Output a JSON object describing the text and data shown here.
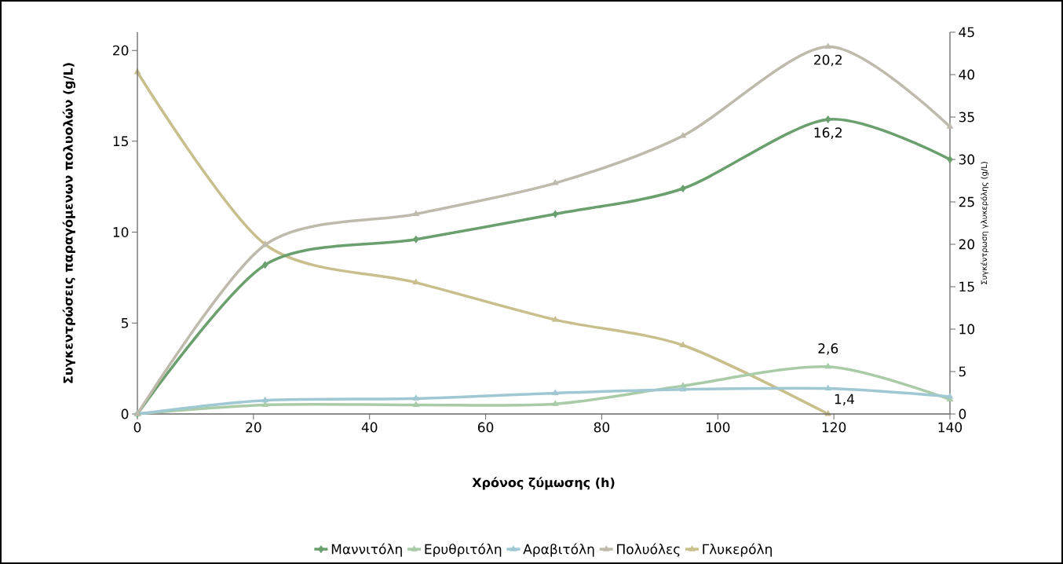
{
  "chart_data": {
    "type": "line",
    "xlabel": "Χρόνος ζύμωσης (h)",
    "ylabel": "Συγκεντρώσεις παραγόμενων  πολυολών (g/L)",
    "y2label": "Συγκέντρωση γλυκερόλης (g/L)",
    "x": [
      0,
      22,
      48,
      72,
      94,
      119,
      140
    ],
    "xlim": [
      0,
      140
    ],
    "xticks": [
      0,
      20,
      40,
      60,
      80,
      100,
      120,
      140
    ],
    "ylim": [
      0,
      21
    ],
    "yticks": [
      0,
      5,
      10,
      15,
      20
    ],
    "y2lim": [
      0,
      45
    ],
    "y2ticks": [
      0,
      5,
      10,
      15,
      20,
      25,
      30,
      35,
      40,
      45
    ],
    "legend": "bottom",
    "series": [
      {
        "name": "Μαννιτόλη",
        "color": "#6a9f6e",
        "marker": "diamond",
        "values": [
          0,
          8.2,
          9.6,
          11.0,
          12.4,
          16.2,
          14.0
        ],
        "value_labels": [
          null,
          null,
          null,
          null,
          null,
          "16,2",
          null
        ]
      },
      {
        "name": "Ερυθριτόλη",
        "color": "#a9cba7",
        "marker": "triangle-down",
        "values": [
          0,
          0.5,
          0.5,
          0.55,
          1.55,
          2.6,
          0.8
        ],
        "value_labels": [
          null,
          null,
          null,
          null,
          null,
          "2,6",
          null
        ]
      },
      {
        "name": "Αραβιτόλη",
        "color": "#9fc8d3",
        "marker": "triangle",
        "values": [
          0,
          0.75,
          0.85,
          1.15,
          1.35,
          1.4,
          0.95
        ],
        "value_labels": [
          null,
          null,
          null,
          null,
          null,
          "1,4",
          null
        ]
      },
      {
        "name": "Πολυόλες",
        "color": "#bebbad",
        "marker": "triangle-right",
        "values": [
          0,
          9.3,
          11.0,
          12.7,
          15.3,
          20.2,
          15.8
        ],
        "value_labels": [
          null,
          null,
          null,
          null,
          null,
          "20,2",
          null
        ]
      },
      {
        "name": "Γλυκερόλη",
        "color": "#c8bf8c",
        "marker": "triangle-left",
        "axis": "y2",
        "values": [
          40.3,
          20.0,
          15.5,
          11.1,
          8.1,
          0,
          null
        ]
      }
    ]
  }
}
